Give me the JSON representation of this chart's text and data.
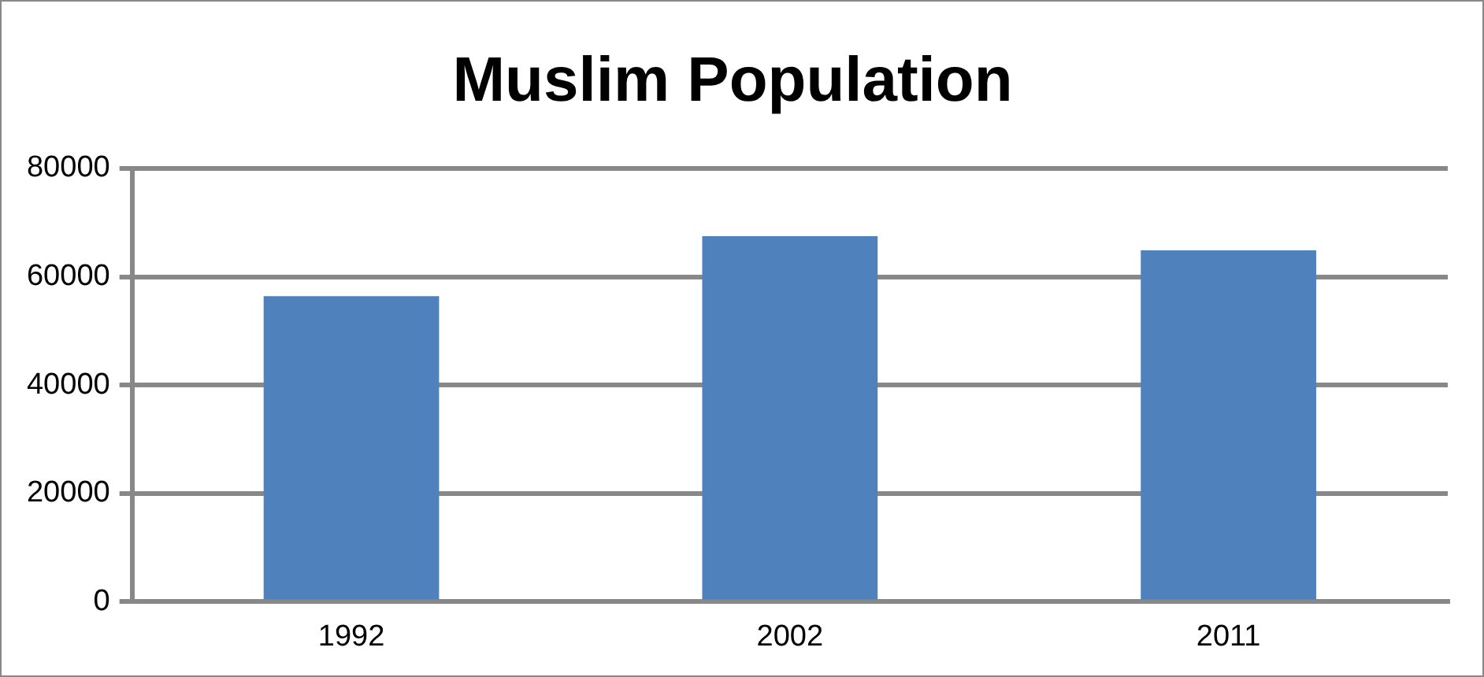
{
  "chart_data": {
    "type": "bar",
    "title": "Muslim Population",
    "categories": [
      "1992",
      "2002",
      "2011"
    ],
    "values": [
      56400,
      67500,
      64900
    ],
    "color": "#4f81bd",
    "ylim": [
      0,
      80000
    ],
    "yticks": [
      0,
      20000,
      40000,
      60000,
      80000
    ],
    "grid": "y",
    "legend": false
  }
}
